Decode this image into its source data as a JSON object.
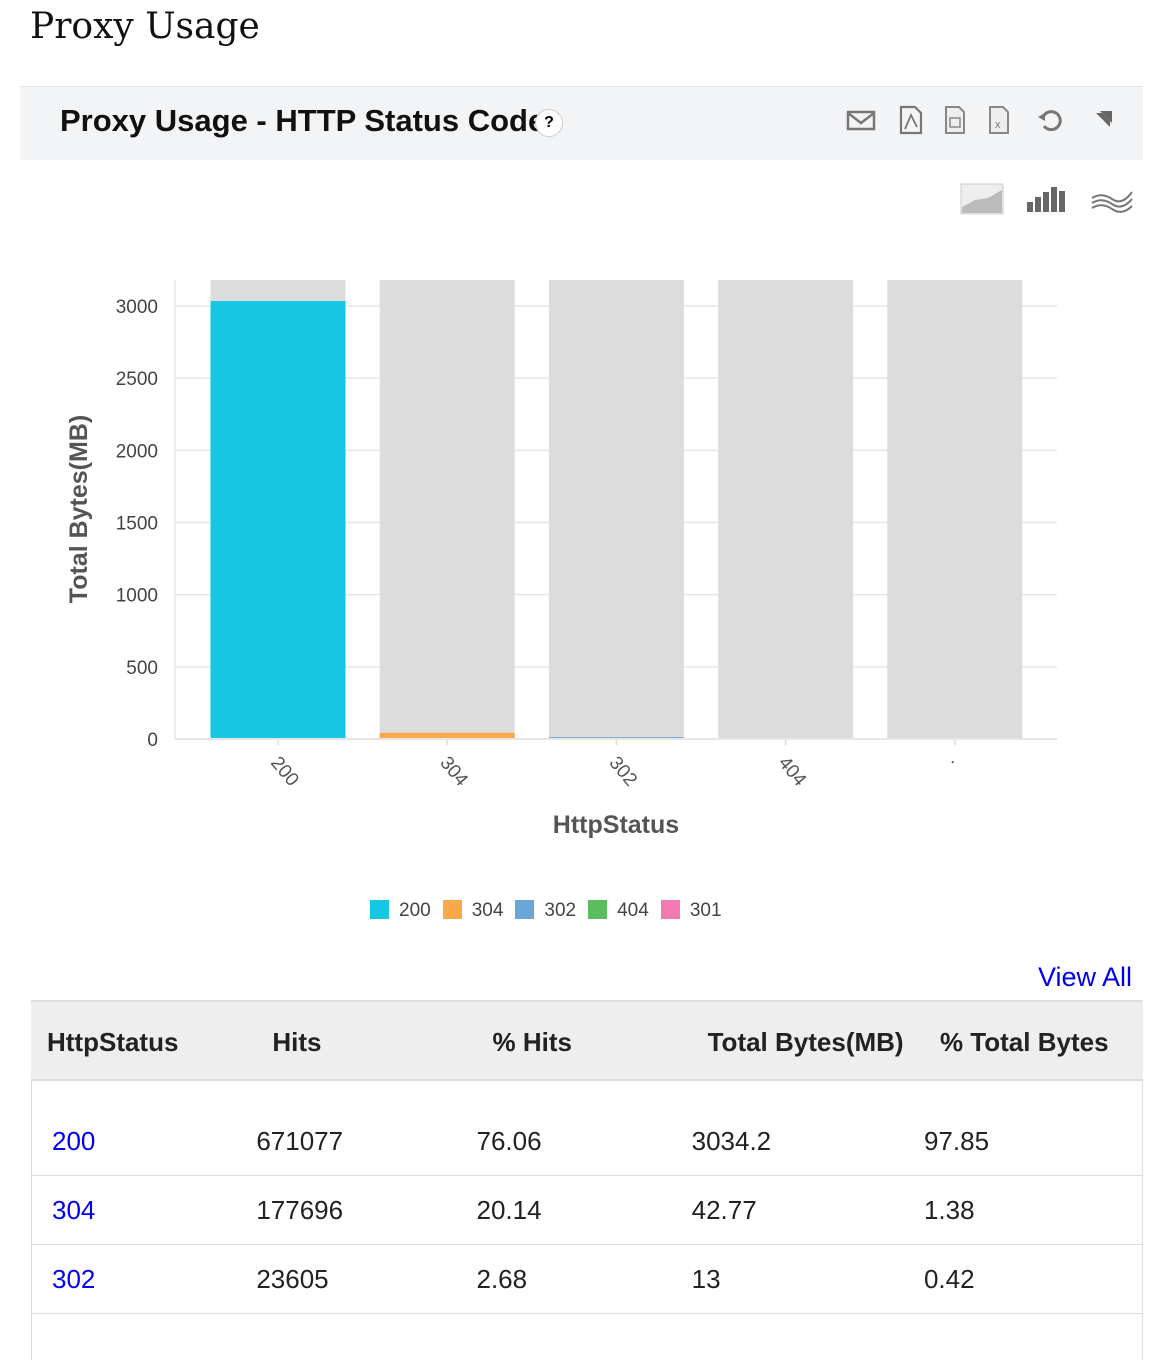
{
  "page_title": "Proxy Usage",
  "panel": {
    "title": "Proxy Usage - HTTP Status Code",
    "help": "?"
  },
  "toolbar": [
    "email-icon",
    "pdf-icon",
    "csv-icon",
    "excel-icon",
    "refresh-icon",
    "expand-icon"
  ],
  "chart_types": [
    "area-chart-icon",
    "bar-chart-icon",
    "line-chart-icon"
  ],
  "chart_data": {
    "type": "bar",
    "categories": [
      "200",
      "304",
      "302",
      "404",
      "301"
    ],
    "tick_labels": [
      "200",
      "304",
      "302",
      "404",
      "·"
    ],
    "values": [
      3034.2,
      42.77,
      13,
      2,
      0.5
    ],
    "colors": [
      "#17c6e2",
      "#f9a94a",
      "#6ba6d9",
      "#5cbd5f",
      "#f37ab0"
    ],
    "background_bar_max": 3180,
    "xlabel": "HttpStatus",
    "ylabel": "Total Bytes(MB)",
    "ylim": [
      0,
      3180
    ],
    "yticks": [
      0,
      500,
      1000,
      1500,
      2000,
      2500,
      3000
    ],
    "grid": true,
    "legend": "bottom-center"
  },
  "view_all": "View All",
  "table": {
    "headers": [
      "HttpStatus",
      "Hits",
      "% Hits",
      "Total Bytes(MB)",
      "% Total Bytes"
    ],
    "rows": [
      [
        "200",
        "671077",
        "76.06",
        "3034.2",
        "97.85"
      ],
      [
        "304",
        "177696",
        "20.14",
        "42.77",
        "1.38"
      ],
      [
        "302",
        "23605",
        "2.68",
        "13",
        "0.42"
      ]
    ]
  }
}
